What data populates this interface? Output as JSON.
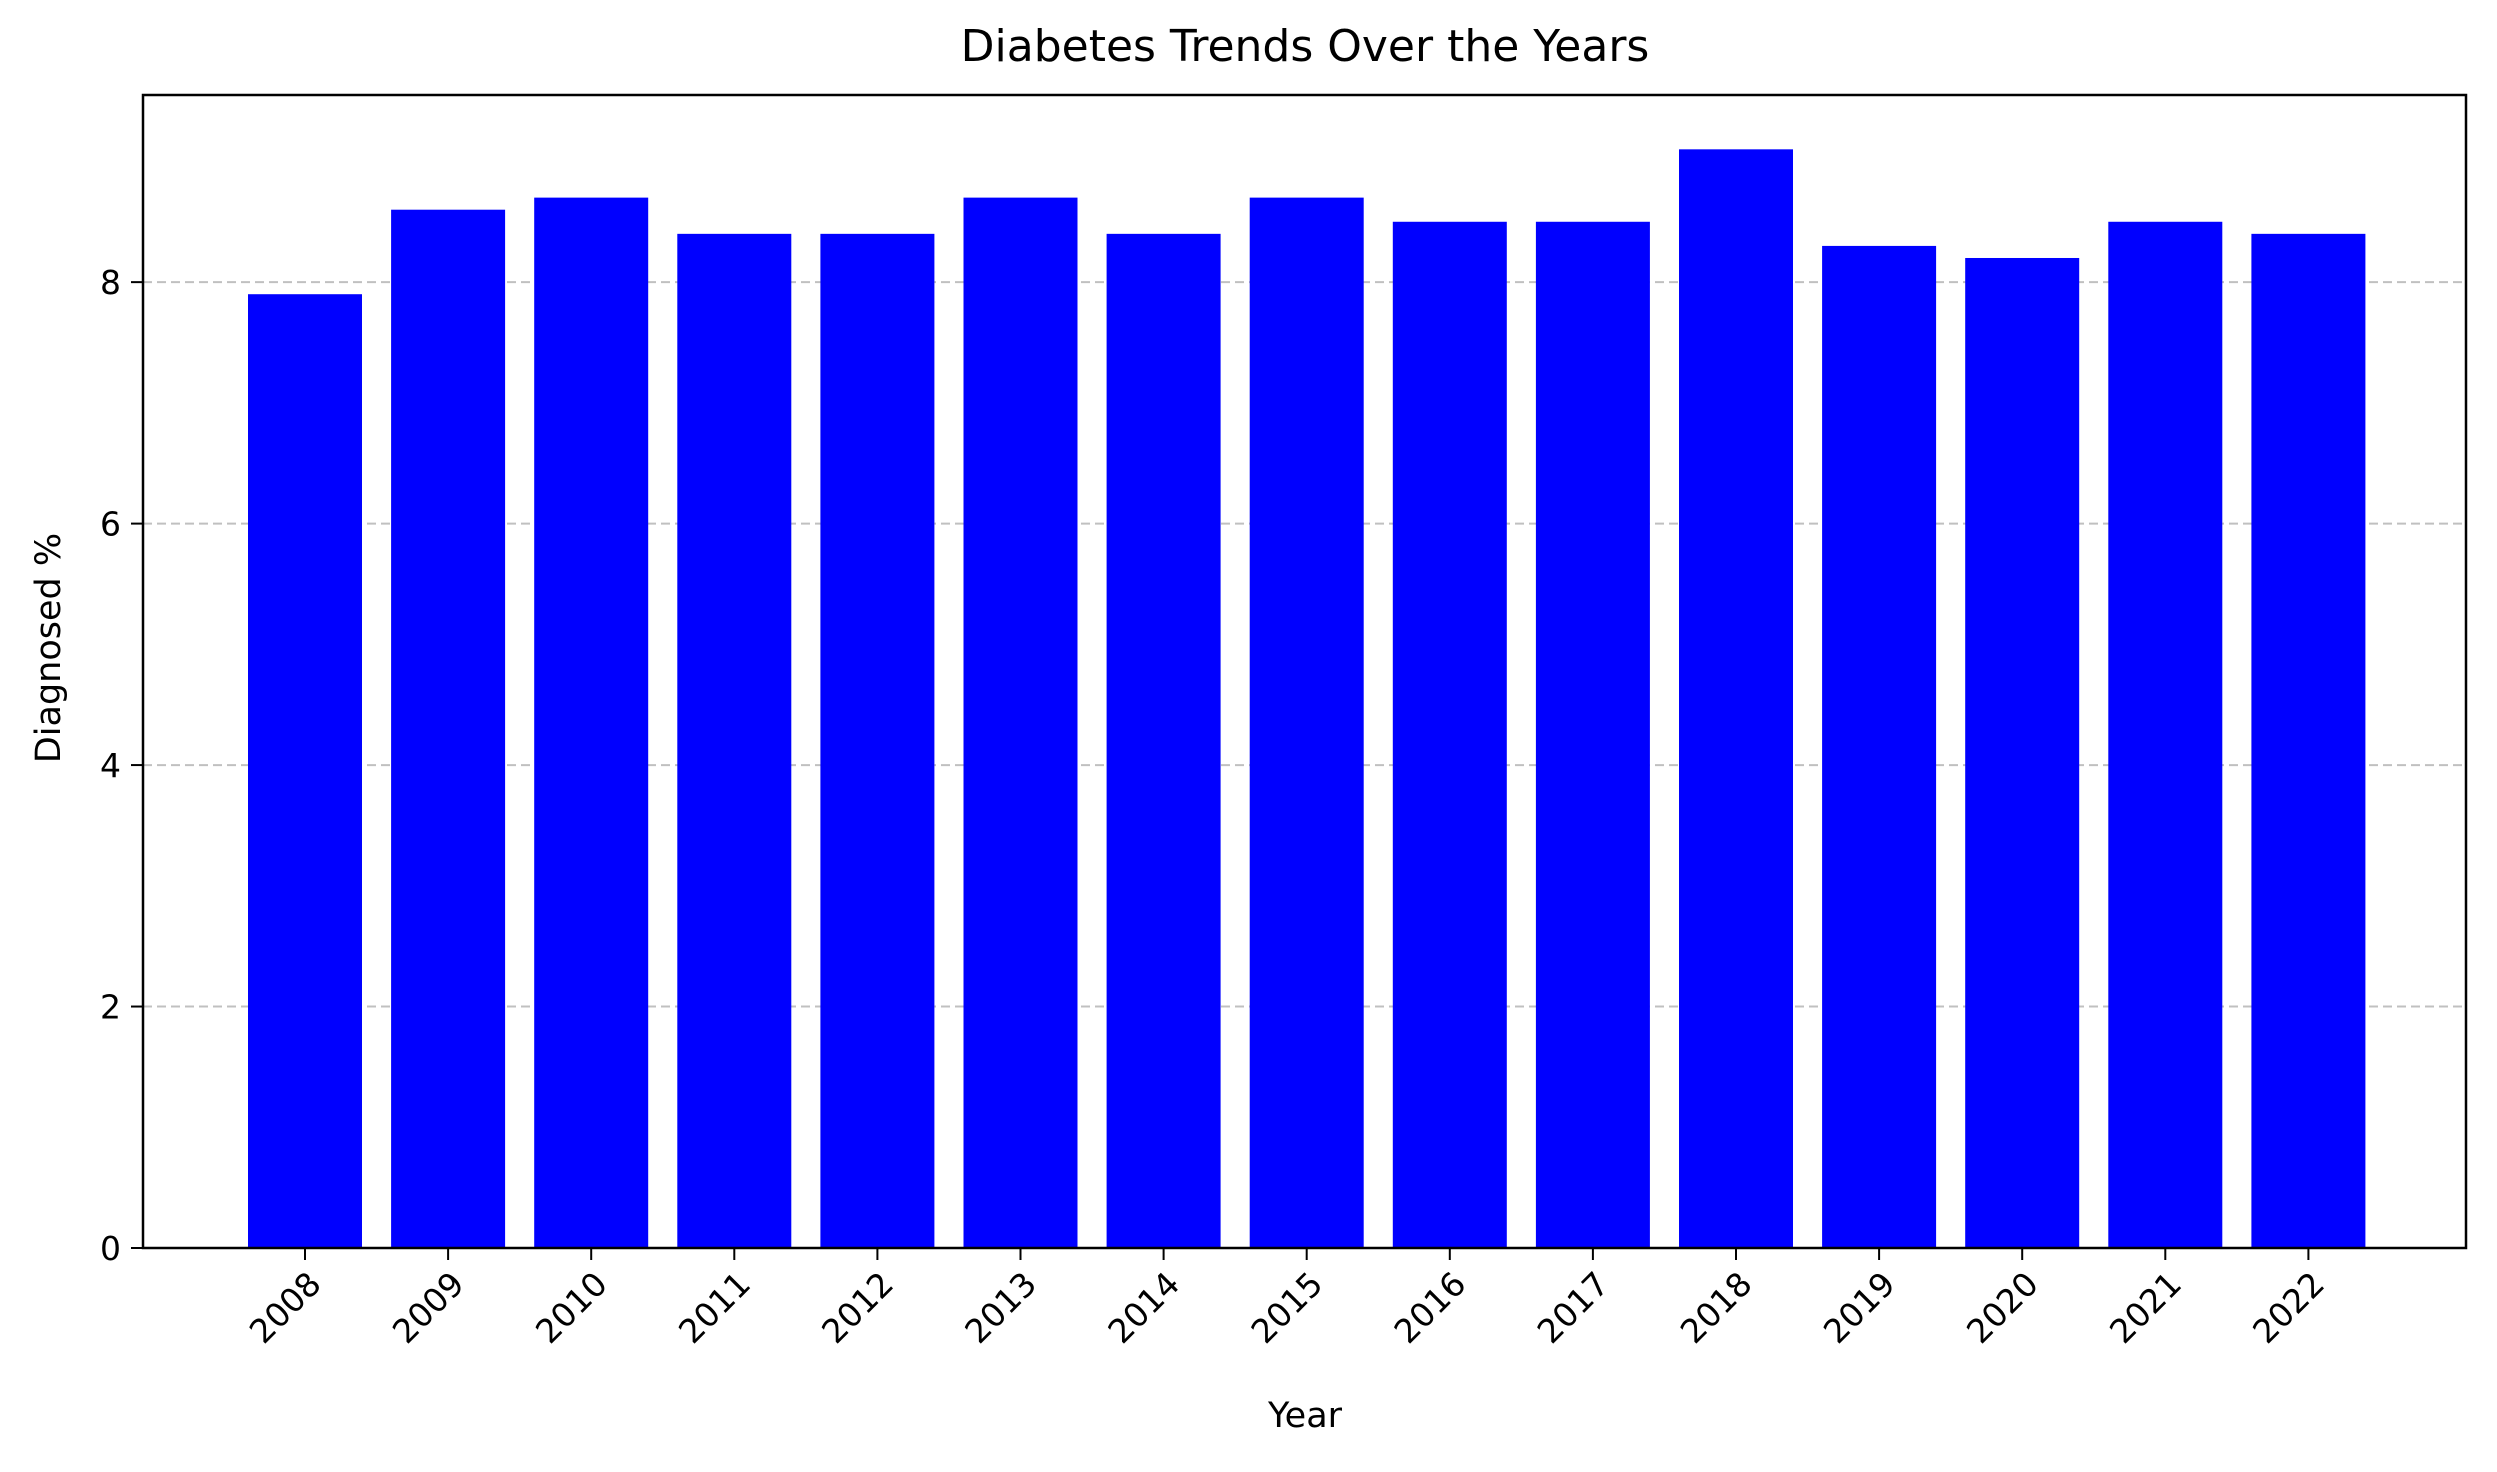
{
  "chart_data": {
    "type": "bar",
    "title": "Diabetes Trends Over the Years",
    "xlabel": "Year",
    "ylabel": "Diagnosed %",
    "categories": [
      "2008",
      "2009",
      "2010",
      "2011",
      "2012",
      "2013",
      "2014",
      "2015",
      "2016",
      "2017",
      "2018",
      "2019",
      "2020",
      "2021",
      "2022"
    ],
    "values": [
      7.9,
      8.6,
      8.7,
      8.4,
      8.4,
      8.7,
      8.4,
      8.7,
      8.5,
      8.5,
      9.1,
      8.3,
      8.2,
      8.5,
      8.4
    ],
    "ylim": [
      0,
      9.55
    ],
    "yticks": [
      "0",
      "2",
      "4",
      "6",
      "8"
    ],
    "grid": "y-dashed",
    "bar_color": "#0000ff",
    "grid_color": "#c0c0c0"
  }
}
